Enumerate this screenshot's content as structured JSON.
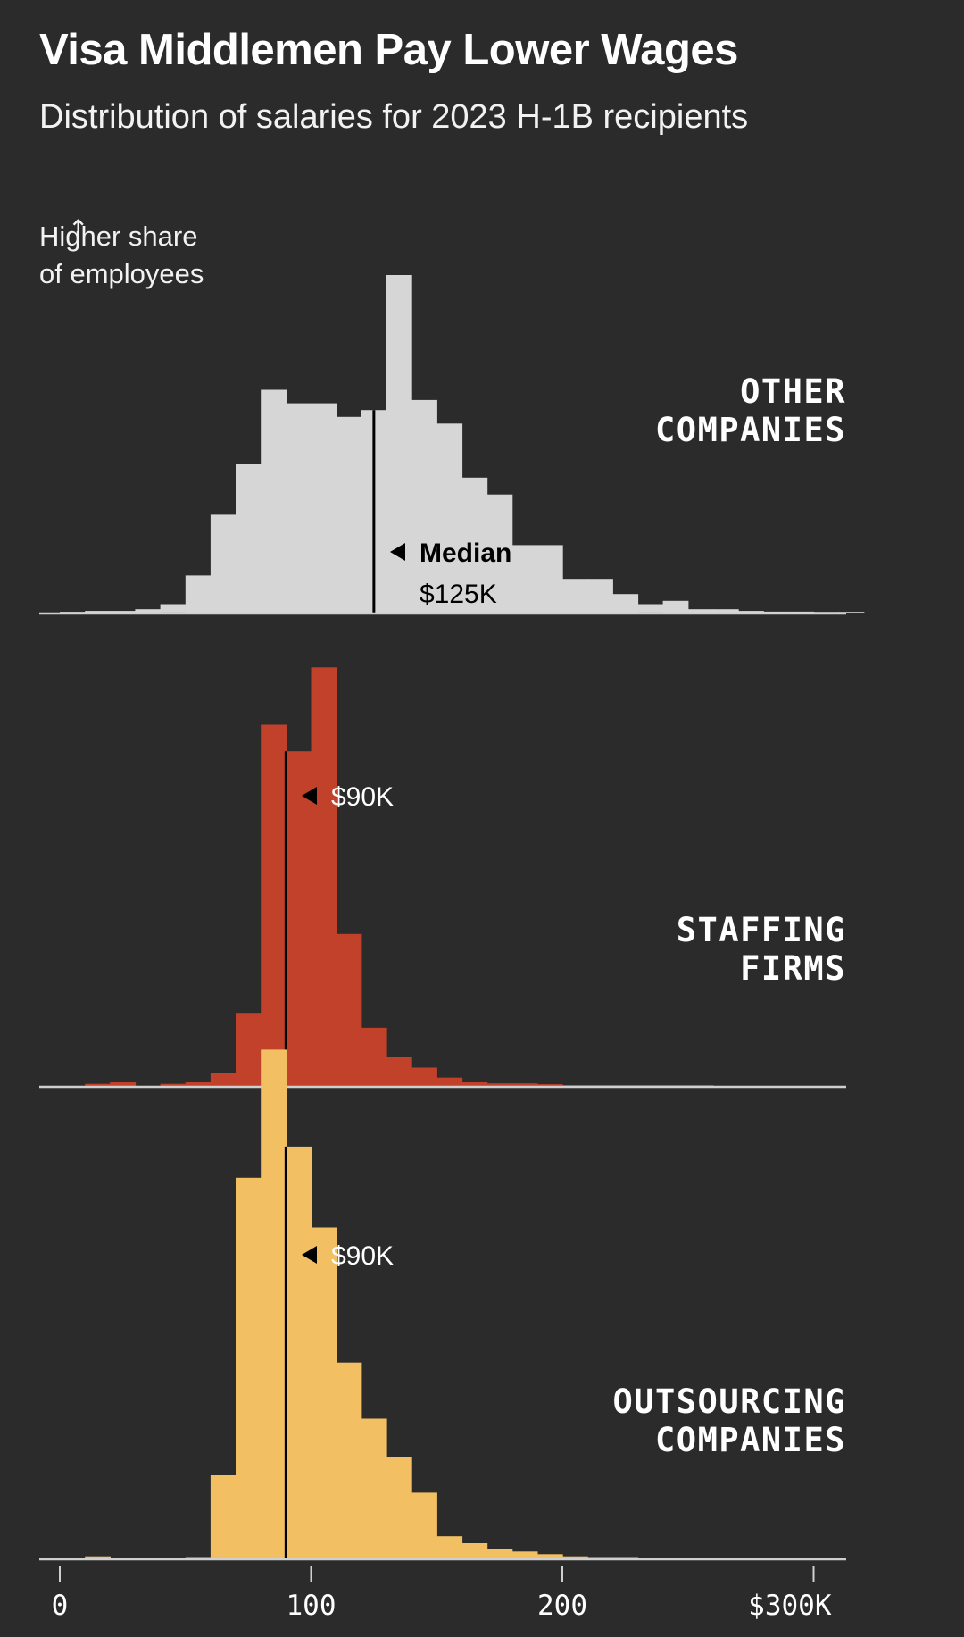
{
  "header": {
    "title": "Visa Middlemen Pay Lower Wages",
    "subtitle": "Distribution of salaries for 2023 H-1B recipients"
  },
  "y_annotation": {
    "arrow": "↑",
    "line1": "Higher share",
    "line2": "of employees"
  },
  "median_label": "Median",
  "colors": {
    "background": "#2b2b2b",
    "other": "#d6d6d6",
    "staffing": "#c2412b",
    "outsourcing": "#f2c063",
    "baseline": "#cfcfcf",
    "median_line": "#000000"
  },
  "chart_data": {
    "type": "histogram",
    "x_unit": "thousand USD",
    "bin_width": 10,
    "bin_starts": [
      0,
      10,
      20,
      30,
      40,
      50,
      60,
      70,
      80,
      90,
      100,
      110,
      120,
      130,
      140,
      150,
      160,
      170,
      180,
      190,
      200,
      210,
      220,
      230,
      240,
      250,
      260,
      270,
      280,
      290,
      300,
      310
    ],
    "xlim": [
      -8,
      313
    ],
    "x_ticks": [
      0,
      100,
      200,
      300
    ],
    "x_tick_labels": [
      "0",
      "100",
      "200",
      "$300K"
    ],
    "ylabel": "Higher share of employees",
    "grid": false,
    "series": [
      {
        "key": "other",
        "name_lines": [
          "OTHER",
          "COMPANIES"
        ],
        "color": "#d6d6d6",
        "median": 125,
        "median_text": "$125K",
        "values": [
          0.25,
          0.5,
          0.5,
          1.0,
          2.5,
          11,
          29,
          44,
          66,
          62,
          62,
          58,
          60,
          100,
          63,
          56,
          40,
          35,
          20,
          20,
          10,
          10,
          5.5,
          2.5,
          3.5,
          1,
          1,
          0.5,
          0.3,
          0.3,
          0.2,
          0.2
        ]
      },
      {
        "key": "staffing",
        "name_lines": [
          "STAFFING",
          "FIRMS"
        ],
        "color": "#c2412b",
        "median": 90,
        "median_text": "$90K",
        "values": [
          0,
          0.25,
          0.5,
          0,
          0.25,
          0.5,
          1.5,
          8.8,
          43.5,
          40.3,
          50.4,
          18.3,
          7.0,
          3.5,
          2.2,
          1.0,
          0.5,
          0.3,
          0.3,
          0.2,
          0.1,
          0.1,
          0.1,
          0.1,
          0.1,
          0.1,
          0,
          0,
          0,
          0,
          0,
          0
        ]
      },
      {
        "key": "outsourcing",
        "name_lines": [
          "OUTSOURCING",
          "COMPANIES"
        ],
        "color": "#f2c063",
        "median": 90,
        "median_text": "$90K",
        "values": [
          0,
          0.3,
          0,
          0,
          0,
          0.2,
          12,
          55,
          73.5,
          59.5,
          47.8,
          28.3,
          20.2,
          14.6,
          9.5,
          3.2,
          2.2,
          1.3,
          1.0,
          0.6,
          0.3,
          0.2,
          0.2,
          0.1,
          0.1,
          0.1,
          0,
          0,
          0,
          0,
          0,
          0
        ]
      }
    ]
  }
}
